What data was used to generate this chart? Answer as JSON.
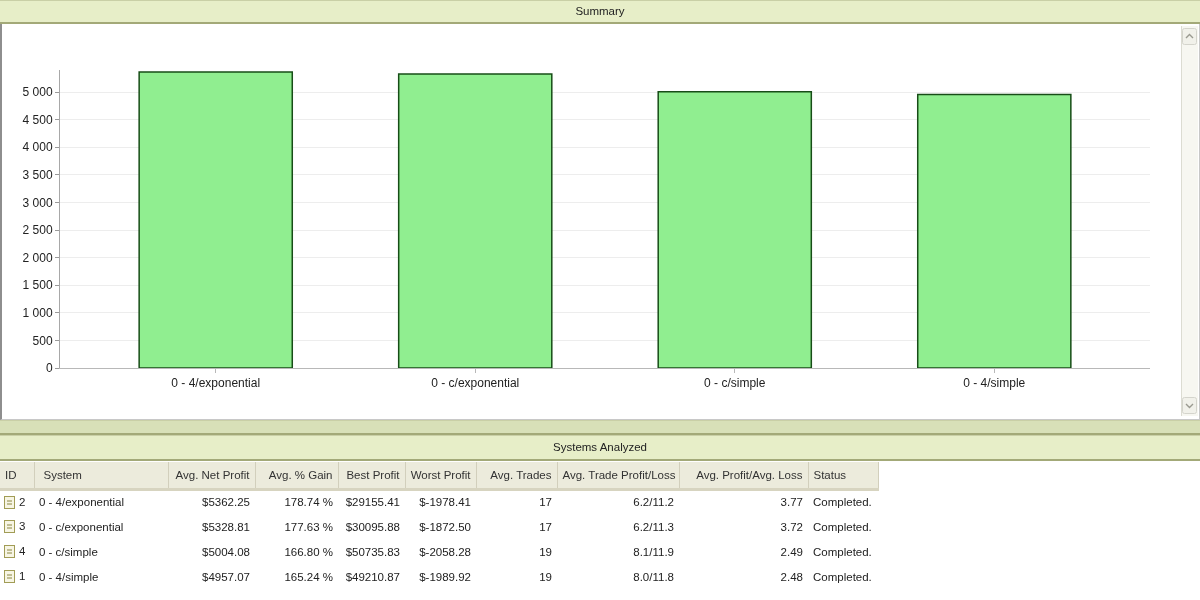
{
  "chart_data": [
    {
      "type": "bar",
      "title": "Summary",
      "categories": [
        "0 - 4/exponential",
        "0 - c/exponential",
        "0 - c/simple",
        "0 - 4/simple"
      ],
      "values": [
        5362.25,
        5328.81,
        5004.08,
        4957.07
      ],
      "color": "#90ee90",
      "ylim": [
        0,
        5400
      ],
      "yticks": [
        0,
        500,
        {
          "value": 1000,
          "label": "1 000"
        },
        {
          "value": 1500,
          "label": "1 500"
        },
        {
          "value": 2000,
          "label": "2 000"
        },
        {
          "value": 2500,
          "label": "2 500"
        },
        {
          "value": 3000,
          "label": "3 000"
        },
        {
          "value": 3500,
          "label": "3 500"
        },
        {
          "value": 4000,
          "label": "4 000"
        },
        {
          "value": 4500,
          "label": "4 500"
        },
        {
          "value": 5000,
          "label": "5 000"
        }
      ],
      "grid": "y"
    },
    {
      "type": "other",
      "title": "Systems Analyzed",
      "categories": [
        "ID",
        "System",
        "Avg. Net Profit",
        "Avg. % Gain",
        "Best Profit",
        "Worst Profit",
        "Avg. Trades",
        "Avg. Trade Profit/Loss",
        "Avg. Profit/Avg. Loss",
        "Status"
      ],
      "cell_labels": [
        [
          "2",
          "0 - 4/exponential",
          "$5362.25",
          "178.74 %",
          "$29155.41",
          "$-1978.41",
          "17",
          "6.2/11.2",
          "3.77",
          "Completed."
        ],
        [
          "3",
          "0 - c/exponential",
          "$5328.81",
          "177.63 %",
          "$30095.88",
          "$-1872.50",
          "17",
          "6.2/11.3",
          "3.72",
          "Completed."
        ],
        [
          "4",
          "0 - c/simple",
          "$5004.08",
          "166.80 %",
          "$50735.83",
          "$-2058.28",
          "19",
          "8.1/11.9",
          "2.49",
          "Completed."
        ],
        [
          "1",
          "0 - 4/simple",
          "$4957.07",
          "165.24 %",
          "$49210.87",
          "$-1989.92",
          "19",
          "8.0/11.8",
          "2.48",
          "Completed."
        ]
      ]
    }
  ]
}
